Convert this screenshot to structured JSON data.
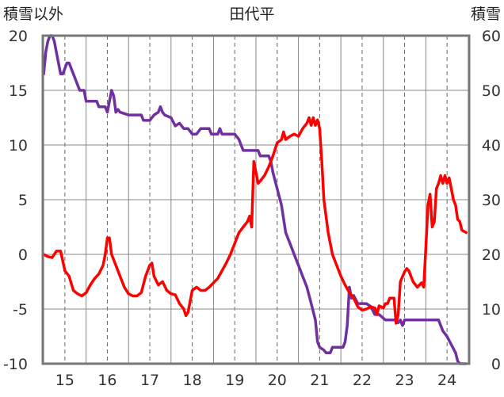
{
  "chart_data": {
    "type": "line",
    "title": "田代平",
    "left_axis_label": "積雪以外",
    "right_axis_label": "積雪",
    "x_ticks": [
      "15",
      "16",
      "17",
      "18",
      "19",
      "20",
      "21",
      "22",
      "23",
      "24"
    ],
    "x_tick_values": [
      15,
      16,
      17,
      18,
      19,
      20,
      21,
      22,
      23,
      24
    ],
    "xlim": [
      14.48,
      24.52
    ],
    "y_left_ticks": [
      "20",
      "15",
      "10",
      "5",
      "0",
      "-5",
      "-10"
    ],
    "y_left_tick_values": [
      20,
      15,
      10,
      5,
      0,
      -5,
      -10
    ],
    "ylim_left": [
      -10,
      20
    ],
    "y_right_ticks": [
      "60",
      "50",
      "40",
      "30",
      "20",
      "10",
      "0"
    ],
    "y_right_tick_values": [
      60,
      50,
      40,
      30,
      20,
      10,
      0
    ],
    "ylim_right": [
      0,
      60
    ],
    "grid": true,
    "series": [
      {
        "axis": "left",
        "color": "#ff0000",
        "points": [
          [
            14.5,
            0.0
          ],
          [
            14.6,
            -0.2
          ],
          [
            14.7,
            -0.3
          ],
          [
            14.8,
            0.3
          ],
          [
            14.9,
            0.3
          ],
          [
            15.0,
            -1.5
          ],
          [
            15.1,
            -2.0
          ],
          [
            15.2,
            -3.3
          ],
          [
            15.3,
            -3.6
          ],
          [
            15.4,
            -3.8
          ],
          [
            15.5,
            -3.5
          ],
          [
            15.6,
            -2.8
          ],
          [
            15.7,
            -2.2
          ],
          [
            15.8,
            -1.8
          ],
          [
            15.9,
            -1.0
          ],
          [
            15.95,
            0.0
          ],
          [
            16.0,
            1.5
          ],
          [
            16.05,
            1.5
          ],
          [
            16.1,
            0.0
          ],
          [
            16.2,
            -1.0
          ],
          [
            16.3,
            -2.0
          ],
          [
            16.4,
            -3.0
          ],
          [
            16.5,
            -3.6
          ],
          [
            16.6,
            -3.8
          ],
          [
            16.7,
            -3.8
          ],
          [
            16.8,
            -3.5
          ],
          [
            16.9,
            -2.0
          ],
          [
            17.0,
            -1.0
          ],
          [
            17.05,
            -0.8
          ],
          [
            17.1,
            -2.0
          ],
          [
            17.2,
            -2.8
          ],
          [
            17.3,
            -2.5
          ],
          [
            17.4,
            -3.3
          ],
          [
            17.5,
            -3.6
          ],
          [
            17.6,
            -3.7
          ],
          [
            17.7,
            -4.5
          ],
          [
            17.8,
            -5.0
          ],
          [
            17.85,
            -5.6
          ],
          [
            17.9,
            -5.3
          ],
          [
            18.0,
            -3.3
          ],
          [
            18.1,
            -3.0
          ],
          [
            18.2,
            -3.3
          ],
          [
            18.3,
            -3.3
          ],
          [
            18.4,
            -3.0
          ],
          [
            18.5,
            -2.6
          ],
          [
            18.6,
            -2.2
          ],
          [
            18.7,
            -1.5
          ],
          [
            18.8,
            -0.8
          ],
          [
            18.9,
            0.0
          ],
          [
            19.0,
            1.0
          ],
          [
            19.1,
            2.0
          ],
          [
            19.2,
            2.5
          ],
          [
            19.3,
            3.0
          ],
          [
            19.35,
            3.5
          ],
          [
            19.4,
            2.5
          ],
          [
            19.45,
            8.5
          ],
          [
            19.5,
            7.5
          ],
          [
            19.55,
            6.5
          ],
          [
            19.6,
            6.7
          ],
          [
            19.7,
            7.2
          ],
          [
            19.8,
            8.0
          ],
          [
            19.9,
            9.0
          ],
          [
            20.0,
            10.2
          ],
          [
            20.1,
            10.5
          ],
          [
            20.15,
            11.2
          ],
          [
            20.2,
            10.5
          ],
          [
            20.3,
            10.8
          ],
          [
            20.4,
            11.0
          ],
          [
            20.5,
            10.8
          ],
          [
            20.6,
            11.5
          ],
          [
            20.7,
            12.0
          ],
          [
            20.75,
            12.5
          ],
          [
            20.8,
            11.8
          ],
          [
            20.85,
            12.5
          ],
          [
            20.9,
            11.8
          ],
          [
            20.95,
            12.3
          ],
          [
            21.0,
            11.5
          ],
          [
            21.05,
            8.5
          ],
          [
            21.1,
            5.0
          ],
          [
            21.2,
            2.0
          ],
          [
            21.3,
            0.0
          ],
          [
            21.4,
            -1.0
          ],
          [
            21.5,
            -2.0
          ],
          [
            21.6,
            -2.8
          ],
          [
            21.7,
            -3.5
          ],
          [
            21.8,
            -4.0
          ],
          [
            21.9,
            -4.8
          ],
          [
            22.0,
            -5.1
          ],
          [
            22.1,
            -5.0
          ],
          [
            22.2,
            -4.8
          ],
          [
            22.3,
            -4.9
          ],
          [
            22.35,
            -5.5
          ],
          [
            22.4,
            -4.7
          ],
          [
            22.5,
            -4.9
          ],
          [
            22.55,
            -4.5
          ],
          [
            22.6,
            -4.5
          ],
          [
            22.65,
            -4.0
          ],
          [
            22.75,
            -4.0
          ],
          [
            22.8,
            -6.3
          ],
          [
            22.85,
            -5.5
          ],
          [
            22.9,
            -2.5
          ],
          [
            23.0,
            -1.6
          ],
          [
            23.05,
            -1.3
          ],
          [
            23.1,
            -1.5
          ],
          [
            23.2,
            -2.5
          ],
          [
            23.3,
            -3.0
          ],
          [
            23.4,
            -2.6
          ],
          [
            23.45,
            -3.0
          ],
          [
            23.5,
            0.5
          ],
          [
            23.55,
            4.5
          ],
          [
            23.6,
            5.5
          ],
          [
            23.65,
            2.5
          ],
          [
            23.7,
            3.0
          ],
          [
            23.75,
            6.0
          ],
          [
            23.8,
            6.5
          ],
          [
            23.85,
            7.2
          ],
          [
            23.9,
            6.5
          ],
          [
            23.95,
            7.2
          ],
          [
            24.0,
            6.5
          ],
          [
            24.05,
            7.0
          ],
          [
            24.1,
            6.0
          ],
          [
            24.15,
            5.0
          ],
          [
            24.2,
            4.5
          ],
          [
            24.25,
            3.2
          ],
          [
            24.3,
            3.0
          ],
          [
            24.35,
            2.2
          ],
          [
            24.45,
            2.0
          ]
        ]
      },
      {
        "axis": "right",
        "color": "#7030a0",
        "points": [
          [
            14.5,
            53
          ],
          [
            14.55,
            57
          ],
          [
            14.6,
            59
          ],
          [
            14.65,
            60
          ],
          [
            14.7,
            60
          ],
          [
            14.75,
            59
          ],
          [
            14.8,
            57
          ],
          [
            14.85,
            55
          ],
          [
            14.9,
            53
          ],
          [
            14.95,
            53
          ],
          [
            15.0,
            54
          ],
          [
            15.05,
            55
          ],
          [
            15.1,
            55
          ],
          [
            15.2,
            53
          ],
          [
            15.3,
            51
          ],
          [
            15.35,
            50
          ],
          [
            15.45,
            50
          ],
          [
            15.5,
            48
          ],
          [
            15.75,
            48
          ],
          [
            15.8,
            47
          ],
          [
            15.95,
            47
          ],
          [
            16.0,
            46
          ],
          [
            16.05,
            48
          ],
          [
            16.1,
            50
          ],
          [
            16.15,
            49
          ],
          [
            16.2,
            46
          ],
          [
            16.25,
            46.5
          ],
          [
            16.3,
            46
          ],
          [
            16.5,
            45.5
          ],
          [
            16.8,
            45.5
          ],
          [
            16.85,
            44.5
          ],
          [
            17.0,
            44.5
          ],
          [
            17.1,
            45.5
          ],
          [
            17.2,
            46
          ],
          [
            17.25,
            47
          ],
          [
            17.3,
            46
          ],
          [
            17.35,
            45.5
          ],
          [
            17.5,
            45
          ],
          [
            17.6,
            43.5
          ],
          [
            17.7,
            44
          ],
          [
            17.8,
            43
          ],
          [
            17.9,
            43
          ],
          [
            18.0,
            42
          ],
          [
            18.1,
            42
          ],
          [
            18.2,
            43
          ],
          [
            18.4,
            43
          ],
          [
            18.45,
            42
          ],
          [
            18.6,
            42
          ],
          [
            18.65,
            43
          ],
          [
            18.7,
            42
          ],
          [
            19.0,
            42
          ],
          [
            19.1,
            41
          ],
          [
            19.15,
            40
          ],
          [
            19.2,
            39
          ],
          [
            19.55,
            39
          ],
          [
            19.6,
            38
          ],
          [
            19.8,
            38
          ],
          [
            19.85,
            37
          ],
          [
            19.9,
            35
          ],
          [
            20.0,
            32
          ],
          [
            20.1,
            29
          ],
          [
            20.2,
            24
          ],
          [
            20.3,
            22
          ],
          [
            20.4,
            20
          ],
          [
            20.5,
            18
          ],
          [
            20.6,
            16
          ],
          [
            20.7,
            14
          ],
          [
            20.8,
            11
          ],
          [
            20.9,
            8
          ],
          [
            20.95,
            4
          ],
          [
            21.0,
            3
          ],
          [
            21.1,
            2.5
          ],
          [
            21.15,
            2
          ],
          [
            21.25,
            2
          ],
          [
            21.3,
            3
          ],
          [
            21.55,
            3
          ],
          [
            21.6,
            4
          ],
          [
            21.65,
            7
          ],
          [
            21.7,
            14
          ],
          [
            21.75,
            12
          ],
          [
            21.8,
            12.5
          ],
          [
            21.9,
            11
          ],
          [
            22.0,
            11
          ],
          [
            22.1,
            11
          ],
          [
            22.2,
            10.5
          ],
          [
            22.3,
            9
          ],
          [
            22.4,
            9
          ],
          [
            22.55,
            8
          ],
          [
            22.8,
            8
          ],
          [
            22.85,
            7.5
          ],
          [
            22.9,
            8
          ],
          [
            22.95,
            7
          ],
          [
            23.0,
            8
          ],
          [
            23.8,
            8
          ],
          [
            23.9,
            6
          ],
          [
            24.0,
            5
          ],
          [
            24.1,
            3.5
          ],
          [
            24.2,
            2
          ],
          [
            24.25,
            0.5
          ],
          [
            24.3,
            0
          ],
          [
            24.45,
            0
          ]
        ]
      }
    ]
  }
}
